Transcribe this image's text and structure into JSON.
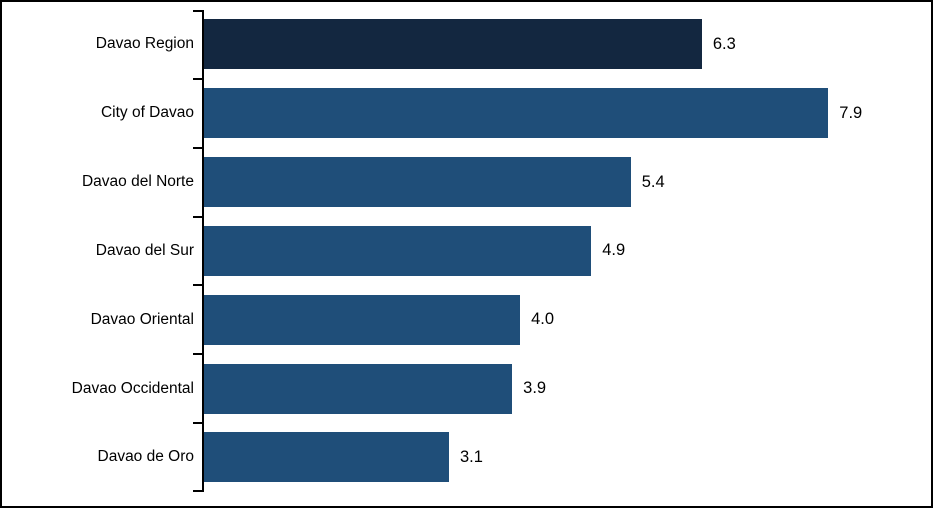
{
  "chart_data": {
    "type": "bar",
    "orientation": "horizontal",
    "title": "",
    "xlabel": "",
    "ylabel": "",
    "categories": [
      "Davao Region",
      "City of Davao",
      "Davao del Norte",
      "Davao del Sur",
      "Davao Oriental",
      "Davao Occidental",
      "Davao de Oro"
    ],
    "values": [
      6.3,
      7.9,
      5.4,
      4.9,
      4.0,
      3.9,
      3.1
    ],
    "value_labels": [
      "6.3",
      "7.9",
      "5.4",
      "4.9",
      "4.0",
      "3.9",
      "3.1"
    ],
    "bar_colors": [
      "#132740",
      "#1F4E79",
      "#1F4E79",
      "#1F4E79",
      "#1F4E79",
      "#1F4E79",
      "#1F4E79"
    ],
    "xlim": [
      0,
      9.2
    ],
    "grid": false,
    "legend": null,
    "axis_color": "#000000",
    "text_color": "#000000",
    "background_color": "#FFFFFF",
    "border_color": "#000000"
  }
}
